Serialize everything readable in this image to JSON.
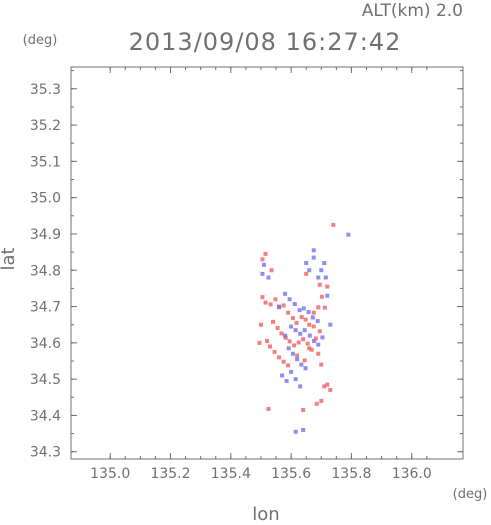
{
  "chart_data": {
    "type": "scatter",
    "title": "2013/09/08 16:27:42",
    "subtitle": "ALT(km) 2.0",
    "xlabel": "lon",
    "ylabel": "lat",
    "x_unit": "(deg)",
    "y_unit": "(deg)",
    "xlim": [
      134.87,
      136.17
    ],
    "ylim": [
      34.28,
      35.36
    ],
    "x_ticks": [
      "135.0",
      "135.2",
      "135.4",
      "135.6",
      "135.8",
      "136.0"
    ],
    "y_ticks": [
      "34.3",
      "34.4",
      "34.5",
      "34.6",
      "34.7",
      "34.8",
      "34.9",
      "35.0",
      "35.1",
      "35.2",
      "35.3"
    ],
    "grid": false,
    "colors": {
      "positive": "#f06060",
      "negative": "#7070f0",
      "axis": "#707070"
    },
    "series": [
      {
        "color_key": "positive",
        "points": [
          [
            135.505,
            34.726
          ],
          [
            135.515,
            34.711
          ],
          [
            135.532,
            34.706
          ],
          [
            135.548,
            34.72
          ],
          [
            135.56,
            34.698
          ],
          [
            135.575,
            34.703
          ],
          [
            135.59,
            34.683
          ],
          [
            135.606,
            34.668
          ],
          [
            135.618,
            34.655
          ],
          [
            135.635,
            34.671
          ],
          [
            135.648,
            34.664
          ],
          [
            135.66,
            34.65
          ],
          [
            135.675,
            34.683
          ],
          [
            135.69,
            34.698
          ],
          [
            135.702,
            34.727
          ],
          [
            135.712,
            34.697
          ],
          [
            135.54,
            34.658
          ],
          [
            135.555,
            34.641
          ],
          [
            135.568,
            34.626
          ],
          [
            135.582,
            34.614
          ],
          [
            135.595,
            34.604
          ],
          [
            135.61,
            34.593
          ],
          [
            135.625,
            34.601
          ],
          [
            135.64,
            34.61
          ],
          [
            135.655,
            34.598
          ],
          [
            135.668,
            34.581
          ],
          [
            135.682,
            34.612
          ],
          [
            135.695,
            34.632
          ],
          [
            135.52,
            34.605
          ],
          [
            135.53,
            34.59
          ],
          [
            135.545,
            34.575
          ],
          [
            135.56,
            34.56
          ],
          [
            135.575,
            34.548
          ],
          [
            135.59,
            34.538
          ],
          [
            135.62,
            34.565
          ],
          [
            135.645,
            34.552
          ],
          [
            135.66,
            34.585
          ],
          [
            135.675,
            34.645
          ],
          [
            135.69,
            34.57
          ],
          [
            135.7,
            34.54
          ],
          [
            135.505,
            34.83
          ],
          [
            135.515,
            34.845
          ],
          [
            135.535,
            34.8
          ],
          [
            135.65,
            34.79
          ],
          [
            135.695,
            34.76
          ],
          [
            135.72,
            34.755
          ],
          [
            135.74,
            34.925
          ],
          [
            135.525,
            34.418
          ],
          [
            135.64,
            34.415
          ],
          [
            135.685,
            34.432
          ],
          [
            135.7,
            34.44
          ],
          [
            135.71,
            34.48
          ],
          [
            135.72,
            34.485
          ],
          [
            135.5,
            34.65
          ],
          [
            135.495,
            34.6
          ],
          [
            135.73,
            34.47
          ]
        ]
      },
      {
        "color_key": "negative",
        "points": [
          [
            135.58,
            34.735
          ],
          [
            135.595,
            34.72
          ],
          [
            135.612,
            34.707
          ],
          [
            135.628,
            34.69
          ],
          [
            135.642,
            34.695
          ],
          [
            135.658,
            34.685
          ],
          [
            135.672,
            34.67
          ],
          [
            135.688,
            34.66
          ],
          [
            135.6,
            34.645
          ],
          [
            135.615,
            34.635
          ],
          [
            135.63,
            34.625
          ],
          [
            135.645,
            34.635
          ],
          [
            135.662,
            34.62
          ],
          [
            135.676,
            34.605
          ],
          [
            135.69,
            34.595
          ],
          [
            135.704,
            34.615
          ],
          [
            135.58,
            34.62
          ],
          [
            135.592,
            34.585
          ],
          [
            135.606,
            34.57
          ],
          [
            135.62,
            34.555
          ],
          [
            135.634,
            34.54
          ],
          [
            135.648,
            34.53
          ],
          [
            135.6,
            34.52
          ],
          [
            135.615,
            34.5
          ],
          [
            135.63,
            34.48
          ],
          [
            135.585,
            34.495
          ],
          [
            135.57,
            34.51
          ],
          [
            135.65,
            34.82
          ],
          [
            135.66,
            34.8
          ],
          [
            135.675,
            34.835
          ],
          [
            135.69,
            34.78
          ],
          [
            135.7,
            34.8
          ],
          [
            135.71,
            34.82
          ],
          [
            135.675,
            34.855
          ],
          [
            135.525,
            34.78
          ],
          [
            135.505,
            34.79
          ],
          [
            135.51,
            34.815
          ],
          [
            135.715,
            34.78
          ],
          [
            135.79,
            34.898
          ],
          [
            135.64,
            34.36
          ],
          [
            135.615,
            34.355
          ],
          [
            135.72,
            34.73
          ],
          [
            135.73,
            34.65
          ],
          [
            135.56,
            34.7
          ]
        ]
      }
    ]
  }
}
